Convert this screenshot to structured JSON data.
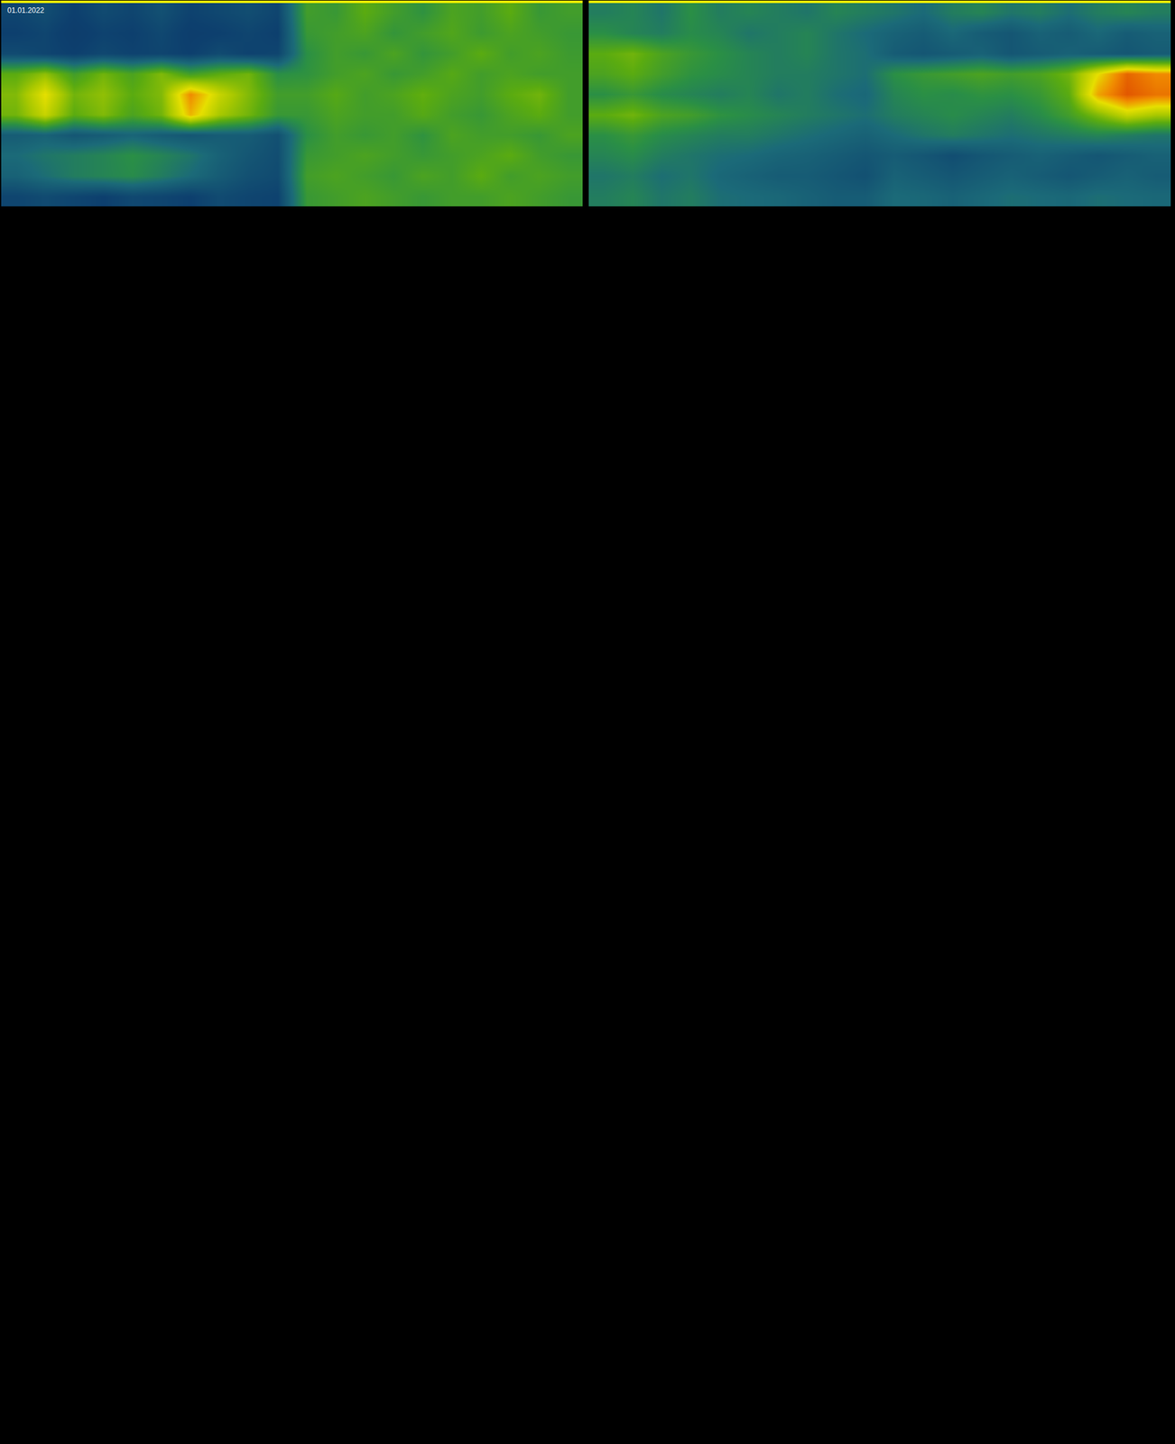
{
  "chart_data": [
    {
      "type": "heatmap",
      "title": "01.01.2022",
      "tick_labels": false,
      "grid": false,
      "zlim": [
        0,
        1
      ],
      "cells": [
        [
          0.22,
          0.25,
          0.2,
          0.24,
          0.22,
          0.26,
          0.21,
          0.23,
          0.25,
          0.22,
          0.5,
          0.48,
          0.55,
          0.5,
          0.46,
          0.52,
          0.5,
          0.55,
          0.48,
          0.5
        ],
        [
          0.2,
          0.22,
          0.18,
          0.21,
          0.2,
          0.23,
          0.19,
          0.2,
          0.22,
          0.2,
          0.48,
          0.5,
          0.52,
          0.47,
          0.5,
          0.53,
          0.49,
          0.52,
          0.5,
          0.48
        ],
        [
          0.24,
          0.22,
          0.2,
          0.23,
          0.21,
          0.22,
          0.2,
          0.24,
          0.21,
          0.22,
          0.45,
          0.5,
          0.48,
          0.52,
          0.47,
          0.5,
          0.55,
          0.5,
          0.52,
          0.49
        ],
        [
          0.55,
          0.62,
          0.5,
          0.58,
          0.52,
          0.6,
          0.5,
          0.55,
          0.58,
          0.45,
          0.46,
          0.5,
          0.52,
          0.48,
          0.5,
          0.54,
          0.5,
          0.52,
          0.5,
          0.5
        ],
        [
          0.6,
          0.75,
          0.58,
          0.62,
          0.55,
          0.6,
          0.85,
          0.7,
          0.6,
          0.5,
          0.5,
          0.54,
          0.5,
          0.52,
          0.56,
          0.52,
          0.5,
          0.55,
          0.58,
          0.5
        ],
        [
          0.58,
          0.7,
          0.55,
          0.6,
          0.52,
          0.58,
          0.8,
          0.65,
          0.58,
          0.48,
          0.48,
          0.52,
          0.5,
          0.5,
          0.54,
          0.5,
          0.48,
          0.52,
          0.55,
          0.5
        ],
        [
          0.3,
          0.32,
          0.28,
          0.3,
          0.33,
          0.3,
          0.28,
          0.3,
          0.3,
          0.26,
          0.45,
          0.5,
          0.48,
          0.5,
          0.46,
          0.52,
          0.5,
          0.5,
          0.48,
          0.52
        ],
        [
          0.35,
          0.38,
          0.4,
          0.42,
          0.45,
          0.42,
          0.38,
          0.32,
          0.28,
          0.25,
          0.48,
          0.5,
          0.52,
          0.5,
          0.48,
          0.5,
          0.52,
          0.55,
          0.5,
          0.48
        ],
        [
          0.32,
          0.36,
          0.4,
          0.42,
          0.44,
          0.4,
          0.35,
          0.3,
          0.26,
          0.24,
          0.5,
          0.52,
          0.5,
          0.48,
          0.52,
          0.5,
          0.55,
          0.5,
          0.52,
          0.5
        ],
        [
          0.22,
          0.24,
          0.22,
          0.2,
          0.23,
          0.22,
          0.2,
          0.24,
          0.22,
          0.21,
          0.48,
          0.5,
          0.52,
          0.5,
          0.48,
          0.5,
          0.5,
          0.52,
          0.5,
          0.48
        ]
      ]
    },
    {
      "type": "heatmap",
      "tick_labels": false,
      "grid": false,
      "zlim": [
        0,
        1
      ],
      "cells": [
        [
          0.4,
          0.42,
          0.38,
          0.45,
          0.4,
          0.42,
          0.4,
          0.38,
          0.42,
          0.4,
          0.38,
          0.35,
          0.4,
          0.42,
          0.38,
          0.4,
          0.36,
          0.4,
          0.42,
          0.4
        ],
        [
          0.45,
          0.42,
          0.4,
          0.44,
          0.42,
          0.38,
          0.4,
          0.42,
          0.38,
          0.35,
          0.32,
          0.3,
          0.34,
          0.3,
          0.28,
          0.32,
          0.3,
          0.34,
          0.3,
          0.32
        ],
        [
          0.55,
          0.58,
          0.52,
          0.48,
          0.45,
          0.42,
          0.4,
          0.42,
          0.38,
          0.36,
          0.3,
          0.28,
          0.3,
          0.32,
          0.28,
          0.3,
          0.32,
          0.3,
          0.28,
          0.3
        ],
        [
          0.52,
          0.55,
          0.5,
          0.46,
          0.44,
          0.42,
          0.4,
          0.4,
          0.38,
          0.36,
          0.45,
          0.48,
          0.5,
          0.52,
          0.5,
          0.52,
          0.58,
          0.75,
          0.9,
          0.85
        ],
        [
          0.45,
          0.48,
          0.44,
          0.42,
          0.4,
          0.42,
          0.38,
          0.4,
          0.36,
          0.34,
          0.42,
          0.45,
          0.44,
          0.46,
          0.45,
          0.48,
          0.55,
          0.82,
          0.92,
          0.88
        ],
        [
          0.55,
          0.58,
          0.52,
          0.5,
          0.46,
          0.44,
          0.42,
          0.4,
          0.38,
          0.36,
          0.4,
          0.42,
          0.44,
          0.42,
          0.4,
          0.44,
          0.5,
          0.6,
          0.7,
          0.65
        ],
        [
          0.45,
          0.48,
          0.44,
          0.42,
          0.4,
          0.4,
          0.38,
          0.36,
          0.34,
          0.32,
          0.35,
          0.38,
          0.4,
          0.38,
          0.36,
          0.38,
          0.4,
          0.42,
          0.4,
          0.38
        ],
        [
          0.42,
          0.44,
          0.4,
          0.38,
          0.36,
          0.35,
          0.33,
          0.32,
          0.3,
          0.28,
          0.3,
          0.28,
          0.25,
          0.28,
          0.3,
          0.32,
          0.3,
          0.28,
          0.3,
          0.32
        ],
        [
          0.38,
          0.4,
          0.36,
          0.38,
          0.34,
          0.32,
          0.3,
          0.3,
          0.28,
          0.26,
          0.32,
          0.3,
          0.28,
          0.3,
          0.32,
          0.3,
          0.28,
          0.3,
          0.32,
          0.3
        ],
        [
          0.4,
          0.42,
          0.38,
          0.4,
          0.36,
          0.35,
          0.34,
          0.32,
          0.3,
          0.3,
          0.35,
          0.34,
          0.32,
          0.34,
          0.36,
          0.35,
          0.34,
          0.36,
          0.35,
          0.34
        ]
      ]
    }
  ]
}
